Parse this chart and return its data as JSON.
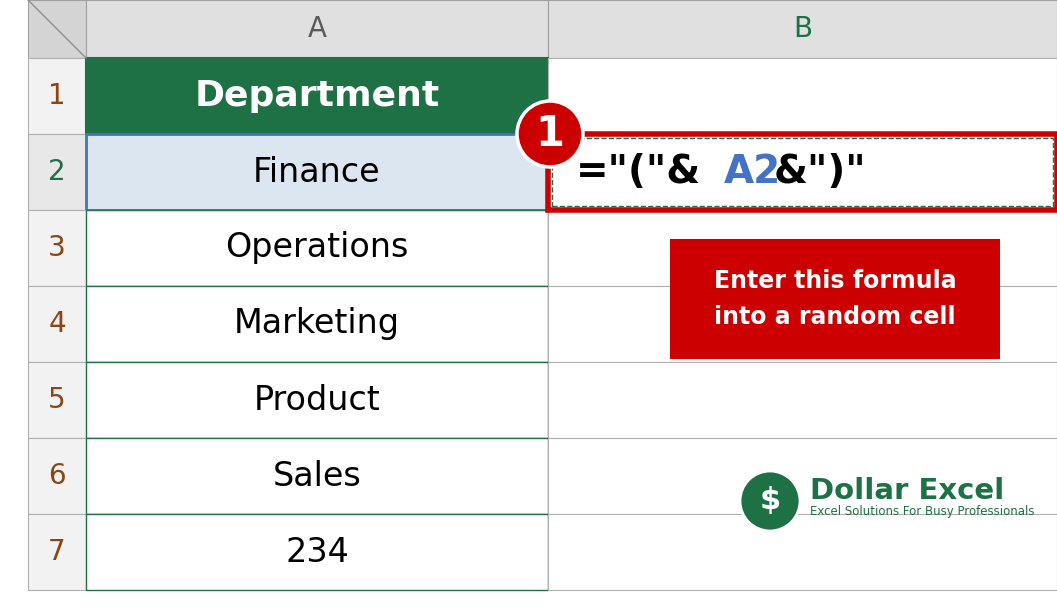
{
  "bg_color": "#ffffff",
  "corner_bg": "#d4d4d4",
  "col_header_bg": "#e8e8e8",
  "col_header_color_a": "#5a5a5a",
  "col_header_color_b": "#1e7145",
  "dept_header_bg": "#1e7145",
  "dept_header_text": "#ffffff",
  "finance_bg": "#dce6f1",
  "cell_border_light": "#c0c0c0",
  "green_border_color": "#1e7145",
  "blue_border_color": "#4472c4",
  "row_num_color_normal": "#8B4513",
  "row_num_color_2": "#1e7145",
  "row_numbers": [
    "1",
    "2",
    "3",
    "4",
    "5",
    "6",
    "7"
  ],
  "col_a_label": "A",
  "col_b_label": "B",
  "row_data_a": [
    "Department",
    "Finance",
    "Operations",
    "Marketing",
    "Product",
    "Sales",
    "234"
  ],
  "formula_black1": "=\"(\"&",
  "formula_blue": "A2",
  "formula_black2": "&\")\"",
  "annotation_bg": "#cc0000",
  "annotation_text": "Enter this formula\ninto a random cell",
  "annotation_text_color": "#ffffff",
  "badge_color": "#cc0000",
  "badge_text": "1",
  "badge_text_color": "#ffffff",
  "logo_green": "#1e7145",
  "logo_text": "Dollar Excel",
  "logo_subtext": "Excel Solutions For Busy Professionals",
  "red_box_color": "#cc0000"
}
